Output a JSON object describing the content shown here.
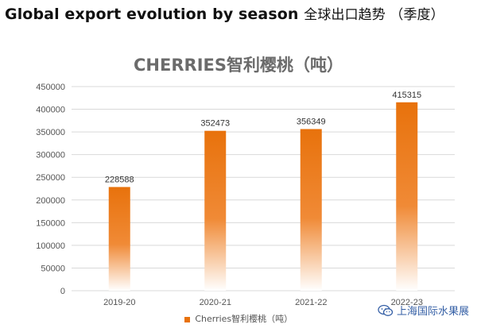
{
  "header": {
    "title_en": "Global export evolution by season",
    "title_cn": "全球出口趋势 （季度）"
  },
  "watermark": {
    "text": "上海国际水果展",
    "icon": "wechat-icon"
  },
  "colors": {
    "bar": "#e8720c",
    "bar_fade": "#ffffff",
    "grid": "#d9d9d9"
  },
  "chart_data": {
    "type": "bar",
    "title": "CHERRIES智利樱桃（吨）",
    "categories": [
      "2019-20",
      "2020-21",
      "2021-22",
      "2022-23"
    ],
    "series": [
      {
        "name": "Cherries智利樱桃（吨）",
        "values": [
          228588,
          352473,
          356349,
          415315
        ]
      }
    ],
    "ylim": [
      0,
      450000
    ],
    "yticks": [
      0,
      50000,
      100000,
      150000,
      200000,
      250000,
      300000,
      350000,
      400000,
      450000
    ],
    "grid": true,
    "legend": "bottom",
    "data_labels": true
  }
}
